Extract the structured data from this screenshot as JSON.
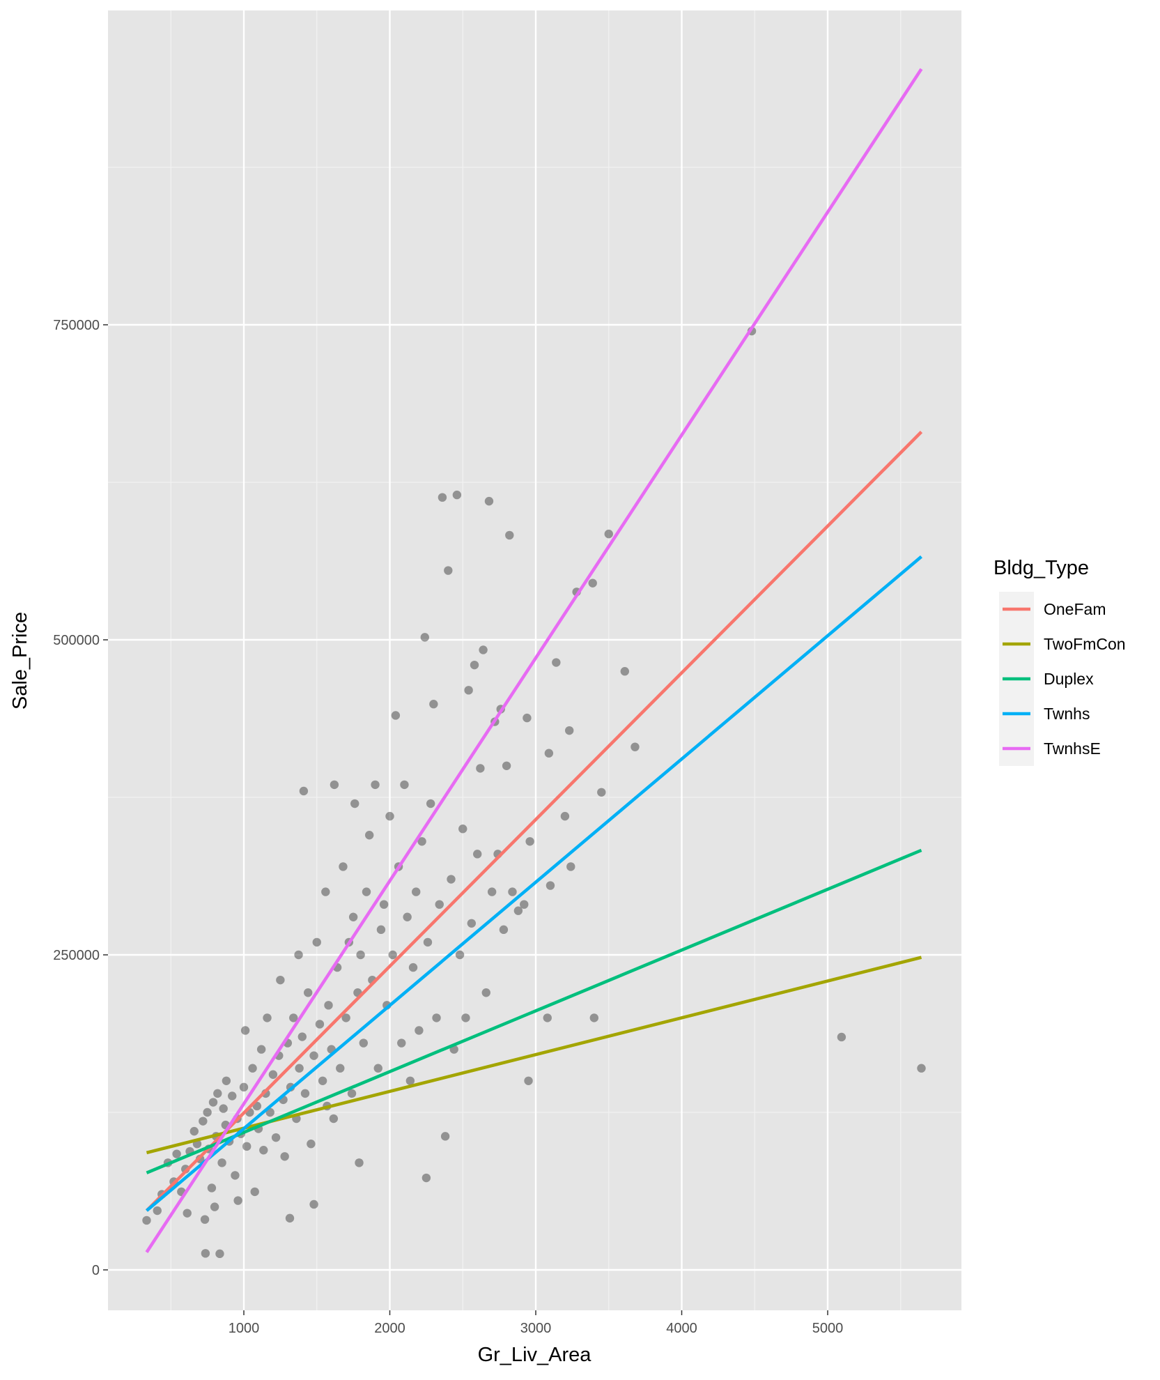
{
  "chart_data": {
    "type": "scatter",
    "title": "",
    "xlabel": "Gr_Liv_Area",
    "ylabel": "Sale_Price",
    "xlim": [
      100,
      5950
    ],
    "ylim": [
      -30000,
      1000000
    ],
    "x_ticks": [
      1000,
      2000,
      3000,
      4000,
      5000
    ],
    "x_minor_ticks": [
      500,
      1500,
      2500,
      3500,
      4500,
      5500
    ],
    "y_ticks": [
      0,
      250000,
      500000,
      750000
    ],
    "y_minor_ticks": [
      125000,
      375000,
      625000,
      875000
    ],
    "x_tick_labels": [
      "1000",
      "2000",
      "3000",
      "4000",
      "5000"
    ],
    "y_tick_labels": [
      "0",
      "250000",
      "500000",
      "750000"
    ],
    "grid": true,
    "legend": {
      "title": "Bldg_Type",
      "placement": "right",
      "entries": [
        "OneFam",
        "TwoFmCon",
        "Duplex",
        "Twnhs",
        "TwnhsE"
      ]
    },
    "point_color": "#3f3f3f",
    "points": [
      [
        334,
        39300
      ],
      [
        407,
        47000
      ],
      [
        438,
        60000
      ],
      [
        480,
        85000
      ],
      [
        520,
        70000
      ],
      [
        540,
        92000
      ],
      [
        572,
        62000
      ],
      [
        600,
        80000
      ],
      [
        612,
        45000
      ],
      [
        630,
        94000
      ],
      [
        660,
        110000
      ],
      [
        680,
        100000
      ],
      [
        700,
        88000
      ],
      [
        720,
        118000
      ],
      [
        733,
        40000
      ],
      [
        737,
        13100
      ],
      [
        750,
        125000
      ],
      [
        760,
        96000
      ],
      [
        780,
        65000
      ],
      [
        790,
        133000
      ],
      [
        800,
        50000
      ],
      [
        810,
        106000
      ],
      [
        820,
        140000
      ],
      [
        835,
        12800
      ],
      [
        850,
        85000
      ],
      [
        860,
        128000
      ],
      [
        875,
        115000
      ],
      [
        880,
        150000
      ],
      [
        900,
        102000
      ],
      [
        920,
        138000
      ],
      [
        940,
        75000
      ],
      [
        955,
        120000
      ],
      [
        960,
        55000
      ],
      [
        980,
        108000
      ],
      [
        1000,
        145000
      ],
      [
        1010,
        190000
      ],
      [
        1020,
        98000
      ],
      [
        1040,
        125000
      ],
      [
        1060,
        160000
      ],
      [
        1075,
        62000
      ],
      [
        1090,
        130000
      ],
      [
        1100,
        112000
      ],
      [
        1120,
        175000
      ],
      [
        1135,
        95000
      ],
      [
        1150,
        140000
      ],
      [
        1160,
        200000
      ],
      [
        1180,
        125000
      ],
      [
        1200,
        155000
      ],
      [
        1220,
        105000
      ],
      [
        1240,
        170000
      ],
      [
        1250,
        230000
      ],
      [
        1270,
        135000
      ],
      [
        1280,
        90000
      ],
      [
        1300,
        180000
      ],
      [
        1315,
        41000
      ],
      [
        1320,
        145000
      ],
      [
        1340,
        200000
      ],
      [
        1360,
        120000
      ],
      [
        1375,
        250000
      ],
      [
        1380,
        160000
      ],
      [
        1400,
        185000
      ],
      [
        1410,
        380000
      ],
      [
        1420,
        140000
      ],
      [
        1440,
        220000
      ],
      [
        1460,
        100000
      ],
      [
        1480,
        52000
      ],
      [
        1480,
        170000
      ],
      [
        1500,
        260000
      ],
      [
        1520,
        195000
      ],
      [
        1540,
        150000
      ],
      [
        1560,
        300000
      ],
      [
        1570,
        130000
      ],
      [
        1580,
        210000
      ],
      [
        1600,
        175000
      ],
      [
        1615,
        120000
      ],
      [
        1620,
        385000
      ],
      [
        1640,
        240000
      ],
      [
        1660,
        160000
      ],
      [
        1680,
        320000
      ],
      [
        1700,
        200000
      ],
      [
        1720,
        260000
      ],
      [
        1740,
        140000
      ],
      [
        1750,
        280000
      ],
      [
        1760,
        370000
      ],
      [
        1780,
        220000
      ],
      [
        1790,
        85000
      ],
      [
        1800,
        250000
      ],
      [
        1820,
        180000
      ],
      [
        1840,
        300000
      ],
      [
        1860,
        345000
      ],
      [
        1880,
        230000
      ],
      [
        1900,
        385000
      ],
      [
        1920,
        160000
      ],
      [
        1940,
        270000
      ],
      [
        1960,
        290000
      ],
      [
        1980,
        210000
      ],
      [
        2000,
        360000
      ],
      [
        2020,
        250000
      ],
      [
        2040,
        440000
      ],
      [
        2060,
        320000
      ],
      [
        2080,
        180000
      ],
      [
        2100,
        385000
      ],
      [
        2120,
        280000
      ],
      [
        2140,
        150000
      ],
      [
        2160,
        240000
      ],
      [
        2180,
        300000
      ],
      [
        2200,
        190000
      ],
      [
        2220,
        340000
      ],
      [
        2240,
        502000
      ],
      [
        2250,
        73000
      ],
      [
        2260,
        260000
      ],
      [
        2280,
        370000
      ],
      [
        2300,
        449000
      ],
      [
        2320,
        200000
      ],
      [
        2340,
        290000
      ],
      [
        2360,
        613000
      ],
      [
        2380,
        106000
      ],
      [
        2400,
        555000
      ],
      [
        2420,
        310000
      ],
      [
        2440,
        175000
      ],
      [
        2460,
        615000
      ],
      [
        2480,
        250000
      ],
      [
        2500,
        350000
      ],
      [
        2520,
        200000
      ],
      [
        2540,
        460000
      ],
      [
        2560,
        275000
      ],
      [
        2580,
        480000
      ],
      [
        2600,
        330000
      ],
      [
        2620,
        398000
      ],
      [
        2640,
        492000
      ],
      [
        2660,
        220000
      ],
      [
        2680,
        610000
      ],
      [
        2700,
        300000
      ],
      [
        2720,
        435000
      ],
      [
        2740,
        330000
      ],
      [
        2760,
        445000
      ],
      [
        2780,
        270000
      ],
      [
        2800,
        400000
      ],
      [
        2820,
        583000
      ],
      [
        2840,
        300000
      ],
      [
        2880,
        285000
      ],
      [
        2920,
        290000
      ],
      [
        2940,
        438000
      ],
      [
        2950,
        150000
      ],
      [
        2960,
        340000
      ],
      [
        3080,
        200000
      ],
      [
        3090,
        410000
      ],
      [
        3100,
        305000
      ],
      [
        3140,
        482000
      ],
      [
        3200,
        360000
      ],
      [
        3230,
        428000
      ],
      [
        3240,
        320000
      ],
      [
        3280,
        538000
      ],
      [
        3390,
        545000
      ],
      [
        3400,
        200000
      ],
      [
        3450,
        379000
      ],
      [
        3500,
        584000
      ],
      [
        3610,
        475000
      ],
      [
        3680,
        415000
      ],
      [
        4480,
        745000
      ],
      [
        5095,
        184750
      ],
      [
        5642,
        160000
      ]
    ],
    "series": [
      {
        "name": "OneFam",
        "color": "#f8766d",
        "x": [
          334,
          5642
        ],
        "y": [
          47000,
          665000
        ]
      },
      {
        "name": "TwoFmCon",
        "color": "#a3a500",
        "x": [
          334,
          5642
        ],
        "y": [
          93000,
          248000
        ]
      },
      {
        "name": "Duplex",
        "color": "#00bf7d",
        "x": [
          334,
          5642
        ],
        "y": [
          77000,
          333000
        ]
      },
      {
        "name": "Twnhs",
        "color": "#00b0f6",
        "x": [
          334,
          5642
        ],
        "y": [
          47000,
          566000
        ]
      },
      {
        "name": "TwnhsE",
        "color": "#e76bf3",
        "x": [
          334,
          5642
        ],
        "y": [
          14000,
          953000
        ]
      }
    ]
  }
}
